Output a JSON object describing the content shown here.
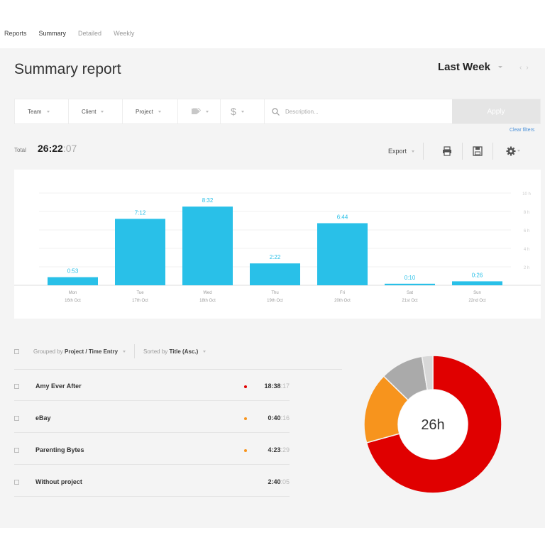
{
  "nav": {
    "items": [
      {
        "label": "Reports",
        "state": "default"
      },
      {
        "label": "Summary",
        "state": "active"
      },
      {
        "label": "Detailed",
        "state": "inactive"
      },
      {
        "label": "Weekly",
        "state": "inactive"
      }
    ]
  },
  "header": {
    "title": "Summary report",
    "period": "Last Week"
  },
  "filters": {
    "team": "Team",
    "client": "Client",
    "project": "Project",
    "billable_symbol": "$",
    "description_placeholder": "Description...",
    "apply": "Apply",
    "clear": "Clear filters"
  },
  "totals": {
    "label": "Total",
    "value": "26:22",
    "seconds": ":07"
  },
  "toolbar": {
    "export": "Export"
  },
  "chart_data": {
    "type": "bar",
    "categories": [
      "Mon",
      "Tue",
      "Wed",
      "Thu",
      "Fri",
      "Sat",
      "Sun"
    ],
    "dates": [
      "16th Oct",
      "17th Oct",
      "18th Oct",
      "19th Oct",
      "20th Oct",
      "21st Oct",
      "22nd Oct"
    ],
    "labels": [
      "0:53",
      "7:12",
      "8:32",
      "2:22",
      "6:44",
      "0:10",
      "0:26"
    ],
    "values": [
      0.88,
      7.2,
      8.53,
      2.37,
      6.73,
      0.17,
      0.43
    ],
    "yticks": [
      "10 h",
      "8 h",
      "6 h",
      "4 h",
      "2 h"
    ],
    "ylim": [
      0,
      10
    ],
    "color": "#29c0e8",
    "grid": true
  },
  "grouping": {
    "grouped_prefix": "Grouped by",
    "grouped_value": "Project / Time Entry",
    "sorted_prefix": "Sorted by",
    "sorted_value": "Title (Asc.)"
  },
  "projects": [
    {
      "name": "Amy Ever After",
      "time": "18:38",
      "seconds": ":17",
      "color": "#e00000"
    },
    {
      "name": "eBay",
      "time": "0:40",
      "seconds": ":16",
      "color": "#f7941d"
    },
    {
      "name": "Parenting Bytes",
      "time": "4:23",
      "seconds": ":29",
      "color": "#f7941d"
    },
    {
      "name": "Without project",
      "time": "2:40",
      "seconds": ":05",
      "color": "#aaaaaa"
    }
  ],
  "donut": {
    "center_label": "26h",
    "segments": [
      {
        "name": "Amy Ever After",
        "value": 18.64,
        "color": "#e00000"
      },
      {
        "name": "Parenting Bytes",
        "value": 4.39,
        "color": "#f7941d"
      },
      {
        "name": "Without project",
        "value": 2.67,
        "color": "#aaaaaa"
      },
      {
        "name": "eBay",
        "value": 0.67,
        "color": "#d8d8d8"
      }
    ]
  }
}
